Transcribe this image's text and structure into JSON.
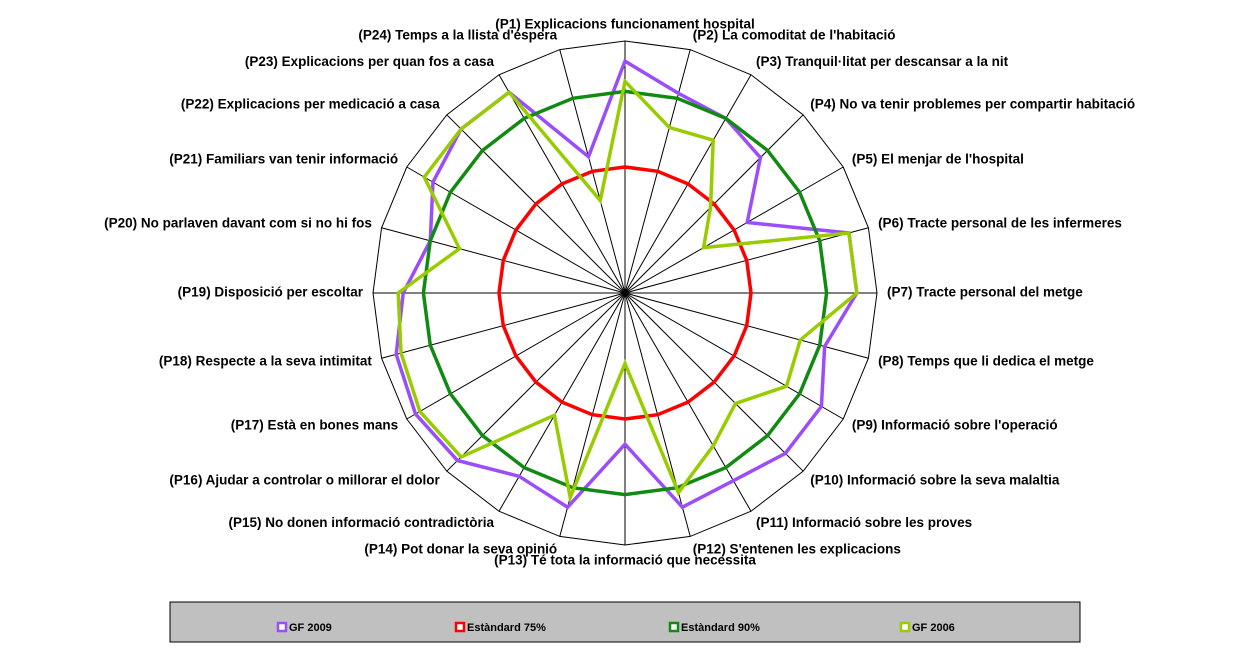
{
  "chart_data": {
    "type": "radar",
    "categories": [
      "(P1) Explicacions  funcionament hospital",
      "(P2) La comoditat de l'habitació",
      "(P3) Tranquil·litat per descansar a la nit",
      "(P4) No va tenir problemes per compartir habitació",
      "(P5) El menjar de l'hospital",
      "(P6) Tracte personal de les infermeres",
      "(P7) Tracte personal del metge",
      "(P8) Temps que li dedica el metge",
      "(P9) Informació sobre l'operació",
      "(P10) Informació sobre la seva malaltia",
      "(P11) Informació sobre les proves",
      "(P12) S'entenen les explicacions",
      "(P13) Té tota la informació que necessita",
      "(P14) Pot donar la seva opinió",
      "(P15) No donen informació contradictòria",
      "(P16) Ajudar a controlar o millorar el dolor",
      "(P17) Està en bones mans",
      "(P18) Respecte a la seva intimitat",
      "(P19) Disposició per escoltar",
      "(P20) No parlaven davant com si no hi fos",
      "(P21) Familiars van tenir informació",
      "(P22) Explicacions per medicació a casa",
      "(P23) Explicacions per quan fos a casa",
      "(P24) Temps a la llista d'espera"
    ],
    "series": [
      {
        "name": "GF 2009",
        "color": "#9b4dfc",
        "values": [
          96,
          91,
          90,
          88,
          78,
          96,
          96,
          91,
          95,
          95,
          93,
          94,
          80,
          94,
          92,
          97,
          98,
          97,
          94,
          90,
          94,
          96,
          96,
          78
        ]
      },
      {
        "name": "Estàndard 75%",
        "color": "#ff0000",
        "values": [
          75,
          75,
          75,
          75,
          75,
          75,
          75,
          75,
          75,
          75,
          75,
          75,
          75,
          75,
          75,
          75,
          75,
          75,
          75,
          75,
          75,
          75,
          75,
          75
        ]
      },
      {
        "name": "Estàndard 90%",
        "color": "#108a10",
        "values": [
          90,
          90,
          90,
          90,
          90,
          90,
          90,
          90,
          90,
          90,
          90,
          90,
          90,
          90,
          90,
          90,
          90,
          90,
          90,
          90,
          90,
          90,
          90,
          90
        ]
      },
      {
        "name": "GF 2006",
        "color": "#99cc00",
        "values": [
          92,
          84,
          85,
          74,
          68,
          96,
          96,
          86,
          87,
          81,
          85,
          91,
          64,
          92,
          78,
          96,
          97,
          96,
          95,
          84,
          96,
          96,
          96,
          69
        ]
      }
    ],
    "rlim": [
      50,
      100
    ]
  }
}
